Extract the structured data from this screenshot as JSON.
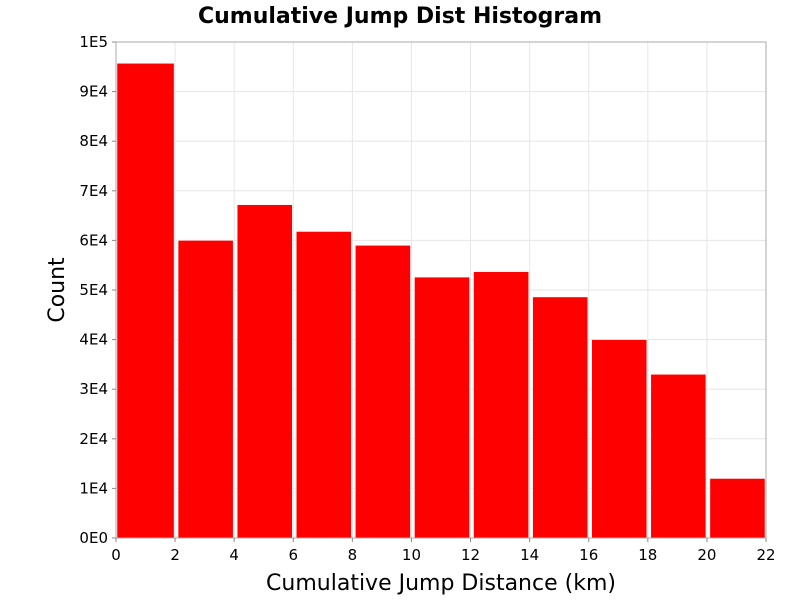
{
  "chart_data": {
    "type": "bar",
    "title": "Cumulative Jump Dist Histogram",
    "xlabel": "Cumulative Jump Distance (km)",
    "ylabel": "Count",
    "xlim": [
      0,
      22
    ],
    "ylim": [
      0,
      100000
    ],
    "grid": true,
    "color": "#ff0000",
    "bins": [
      {
        "x0": 0,
        "x1": 2,
        "value": 95700
      },
      {
        "x0": 2,
        "x1": 4,
        "value": 60000
      },
      {
        "x0": 4,
        "x1": 6,
        "value": 67200
      },
      {
        "x0": 6,
        "x1": 8,
        "value": 61800
      },
      {
        "x0": 8,
        "x1": 10,
        "value": 59000
      },
      {
        "x0": 10,
        "x1": 12,
        "value": 52600
      },
      {
        "x0": 12,
        "x1": 14,
        "value": 53700
      },
      {
        "x0": 14,
        "x1": 16,
        "value": 48600
      },
      {
        "x0": 16,
        "x1": 18,
        "value": 40000
      },
      {
        "x0": 18,
        "x1": 20,
        "value": 33000
      },
      {
        "x0": 20,
        "x1": 22,
        "value": 12000
      }
    ],
    "xticks": [
      {
        "value": 0,
        "label": "0"
      },
      {
        "value": 2,
        "label": "2"
      },
      {
        "value": 4,
        "label": "4"
      },
      {
        "value": 6,
        "label": "6"
      },
      {
        "value": 8,
        "label": "8"
      },
      {
        "value": 10,
        "label": "10"
      },
      {
        "value": 12,
        "label": "12"
      },
      {
        "value": 14,
        "label": "14"
      },
      {
        "value": 16,
        "label": "16"
      },
      {
        "value": 18,
        "label": "18"
      },
      {
        "value": 20,
        "label": "20"
      },
      {
        "value": 22,
        "label": "22"
      }
    ],
    "yticks": [
      {
        "value": 0,
        "label": "0E0"
      },
      {
        "value": 10000,
        "label": "1E4"
      },
      {
        "value": 20000,
        "label": "2E4"
      },
      {
        "value": 30000,
        "label": "3E4"
      },
      {
        "value": 40000,
        "label": "4E4"
      },
      {
        "value": 50000,
        "label": "5E4"
      },
      {
        "value": 60000,
        "label": "6E4"
      },
      {
        "value": 70000,
        "label": "7E4"
      },
      {
        "value": 80000,
        "label": "8E4"
      },
      {
        "value": 90000,
        "label": "9E4"
      },
      {
        "value": 100000,
        "label": "1E5"
      }
    ]
  }
}
